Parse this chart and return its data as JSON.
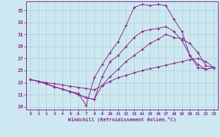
{
  "xlabel": "Windchill (Refroidissement éolien,°C)",
  "background_color": "#cde8f0",
  "grid_color": "#aaccd8",
  "line_color": "#882288",
  "xlim": [
    -0.5,
    23.5
  ],
  "ylim": [
    18.5,
    36.5
  ],
  "yticks": [
    19,
    21,
    23,
    25,
    27,
    29,
    31,
    33,
    35
  ],
  "xticks": [
    0,
    1,
    2,
    3,
    4,
    5,
    6,
    7,
    8,
    9,
    10,
    11,
    12,
    13,
    14,
    15,
    16,
    17,
    18,
    19,
    20,
    21,
    22,
    23
  ],
  "series": [
    [
      23.5,
      23.2,
      22.8,
      22.3,
      21.9,
      21.5,
      21.2,
      19.2,
      23.8,
      26.0,
      28.0,
      29.8,
      32.5,
      35.5,
      36.0,
      35.8,
      36.0,
      35.8,
      33.5,
      31.5,
      27.5,
      26.0,
      25.2,
      25.5
    ],
    [
      23.5,
      23.2,
      22.8,
      22.3,
      21.9,
      21.5,
      21.0,
      20.5,
      20.2,
      24.0,
      26.5,
      27.5,
      29.0,
      30.5,
      31.5,
      31.8,
      32.0,
      32.3,
      31.5,
      30.0,
      27.5,
      25.5,
      25.2,
      25.5
    ],
    [
      23.5,
      23.2,
      22.8,
      22.3,
      21.9,
      21.5,
      21.0,
      20.5,
      20.2,
      22.5,
      24.0,
      25.2,
      26.5,
      27.5,
      28.5,
      29.5,
      30.2,
      31.0,
      30.5,
      30.3,
      29.5,
      28.0,
      25.8,
      25.5
    ],
    [
      23.5,
      23.2,
      23.0,
      22.8,
      22.6,
      22.4,
      22.2,
      22.0,
      21.8,
      22.5,
      23.2,
      23.8,
      24.2,
      24.6,
      25.0,
      25.3,
      25.6,
      25.9,
      26.2,
      26.5,
      26.8,
      27.0,
      26.5,
      25.5
    ]
  ]
}
